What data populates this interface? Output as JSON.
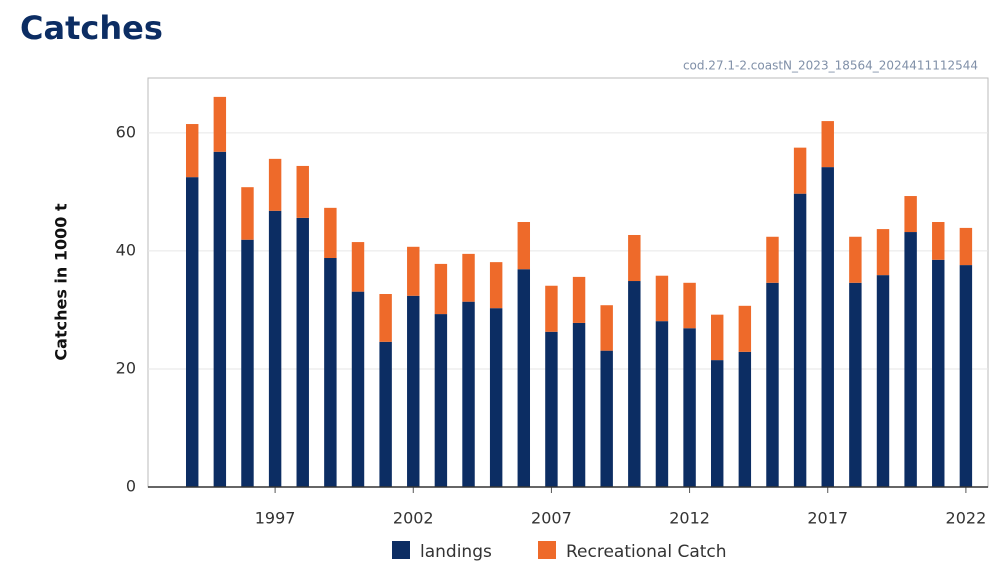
{
  "chart_data": {
    "type": "stacked_bar",
    "title": "Catches",
    "subtitle": "cod.27.1-2.coastN_2023_18564_2024411112544",
    "y_label": "Catches in 1000 t",
    "x": [
      1994,
      1995,
      1996,
      1997,
      1998,
      1999,
      2000,
      2001,
      2002,
      2003,
      2004,
      2005,
      2006,
      2007,
      2008,
      2009,
      2010,
      2011,
      2012,
      2013,
      2014,
      2015,
      2016,
      2017,
      2018,
      2019,
      2020,
      2021,
      2022
    ],
    "series": [
      {
        "name": "landings",
        "color": "#0c2d63",
        "values": [
          52.5,
          56.8,
          41.9,
          46.8,
          45.6,
          38.8,
          33.1,
          24.6,
          32.4,
          29.3,
          31.4,
          30.3,
          36.9,
          26.3,
          27.8,
          23.1,
          34.9,
          28.1,
          26.9,
          21.5,
          22.9,
          34.6,
          49.7,
          54.2,
          34.6,
          35.9,
          43.2,
          38.5,
          37.6
        ]
      },
      {
        "name": "Recreational Catch",
        "color": "#ee6a2a",
        "values": [
          9.0,
          9.3,
          8.9,
          8.8,
          8.8,
          8.5,
          8.4,
          8.1,
          8.3,
          8.5,
          8.1,
          7.8,
          8.0,
          7.8,
          7.8,
          7.7,
          7.8,
          7.7,
          7.7,
          7.7,
          7.8,
          7.8,
          7.8,
          7.8,
          7.8,
          7.8,
          6.1,
          6.4,
          6.3
        ]
      }
    ],
    "xlim": [
      1992.4,
      2022.8
    ],
    "xticks": [
      1997,
      2002,
      2007,
      2012,
      2017,
      2022
    ],
    "ylim": [
      0,
      69.3
    ],
    "yticks": [
      0,
      20,
      40,
      60
    ],
    "grid": true,
    "legend": "bottom"
  }
}
